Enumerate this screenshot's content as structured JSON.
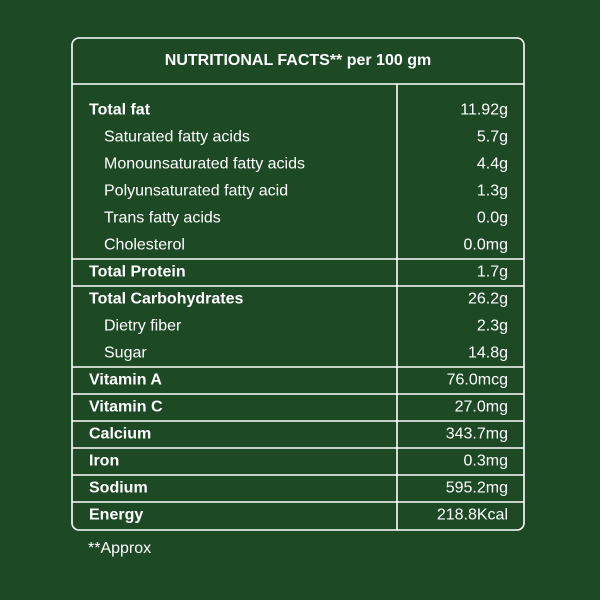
{
  "header": {
    "title": "NUTRITIONAL FACTS** per 100 gm"
  },
  "groups": [
    {
      "name": "Total fat",
      "value": "11.92g",
      "items": [
        {
          "name": "Saturated fatty acids",
          "value": "5.7g"
        },
        {
          "name": "Monounsaturated fatty acids",
          "value": "4.4g"
        },
        {
          "name": "Polyunsaturated fatty acid",
          "value": "1.3g"
        },
        {
          "name": "Trans fatty acids",
          "value": "0.0g"
        },
        {
          "name": "Cholesterol",
          "value": "0.0mg"
        }
      ]
    },
    {
      "name": "Total Protein",
      "value": "1.7g",
      "items": []
    },
    {
      "name": "Total Carbohydrates",
      "value": "26.2g",
      "items": [
        {
          "name": "Dietry fiber",
          "value": "2.3g"
        },
        {
          "name": "Sugar",
          "value": "14.8g"
        }
      ]
    },
    {
      "name": "Vitamin A",
      "value": "76.0mcg",
      "items": []
    },
    {
      "name": "Vitamin C",
      "value": "27.0mg",
      "items": []
    },
    {
      "name": "Calcium",
      "value": "343.7mg",
      "items": []
    },
    {
      "name": "Iron",
      "value": "0.3mg",
      "items": []
    },
    {
      "name": "Sodium",
      "value": "595.2mg",
      "items": []
    },
    {
      "name": "Energy",
      "value": "218.8Kcal",
      "items": []
    }
  ],
  "footnote": "**Approx"
}
